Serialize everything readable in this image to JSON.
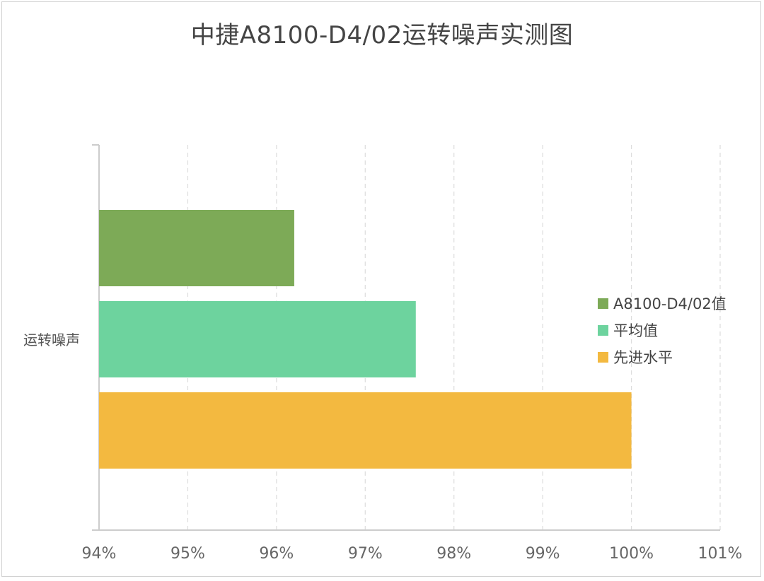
{
  "chart_data": {
    "type": "bar",
    "orientation": "horizontal",
    "title": "中捷A8100-D4/02运转噪声实测图",
    "categories": [
      "运转噪声"
    ],
    "series": [
      {
        "name": "A8100-D4/02值",
        "values": [
          96.2
        ],
        "color": "#7daa57"
      },
      {
        "name": "平均值",
        "values": [
          97.57
        ],
        "color": "#6dd39e"
      },
      {
        "name": "先进水平",
        "values": [
          100.0
        ],
        "color": "#f3b940"
      }
    ],
    "xlim": [
      94,
      101
    ],
    "xticks": [
      "94%",
      "95%",
      "96%",
      "97%",
      "98%",
      "99%",
      "100%",
      "101%"
    ],
    "grid": true,
    "legend_position": "right",
    "xlabel": "",
    "ylabel": ""
  }
}
